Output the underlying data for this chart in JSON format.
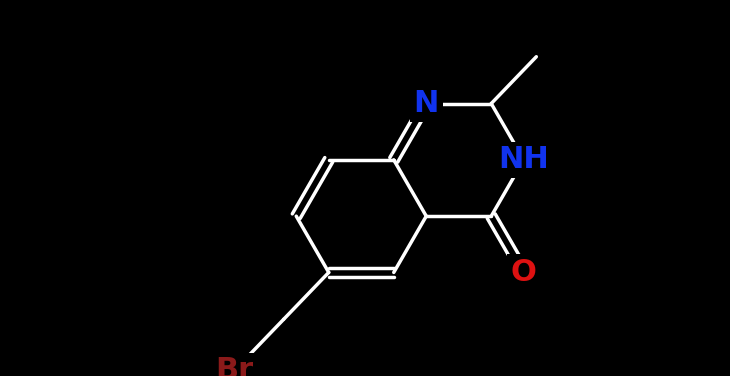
{
  "background_color": "#000000",
  "bond_color": "#ffffff",
  "bond_lw": 2.5,
  "atom_colors": {
    "O": "#dd1111",
    "N": "#1133ee",
    "Br": "#8b1a1a",
    "C": "#ffffff"
  },
  "font_size": 20,
  "figsize": [
    7.3,
    3.76
  ],
  "dpi": 100
}
